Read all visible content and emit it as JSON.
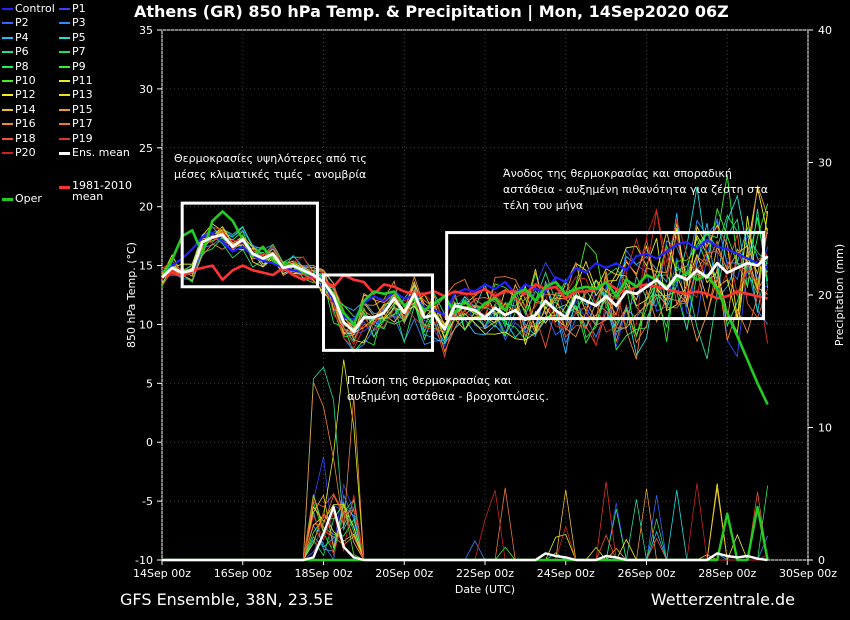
{
  "title": "Athens  (GR)  850 hPa Temp. & Precipitation | Mon, 14Sep2020 06Z",
  "footer": {
    "left": "GFS Ensemble, 38N, 23.5E",
    "right": "Wetterzentrale.de"
  },
  "legend": [
    {
      "label": "Control",
      "color": "#2222ff"
    },
    {
      "label": "P1",
      "color": "#3344ff"
    },
    {
      "label": "P2",
      "color": "#3366ff"
    },
    {
      "label": "P3",
      "color": "#3388ff"
    },
    {
      "label": "P4",
      "color": "#22bbff"
    },
    {
      "label": "P5",
      "color": "#22dddd"
    },
    {
      "label": "P6",
      "color": "#22dd99"
    },
    {
      "label": "P7",
      "color": "#22dd66"
    },
    {
      "label": "P8",
      "color": "#22ee55"
    },
    {
      "label": "P9",
      "color": "#33ee33"
    },
    {
      "label": "P10",
      "color": "#44ee22"
    },
    {
      "label": "P11",
      "color": "#ddee22"
    },
    {
      "label": "P12",
      "color": "#eeee22"
    },
    {
      "label": "P13",
      "color": "#eedd22"
    },
    {
      "label": "P14",
      "color": "#eebb33"
    },
    {
      "label": "P15",
      "color": "#ee9933"
    },
    {
      "label": "P16",
      "color": "#ee8833"
    },
    {
      "label": "P17",
      "color": "#ee7733"
    },
    {
      "label": "P18",
      "color": "#ee5533"
    },
    {
      "label": "P19",
      "color": "#dd3322"
    },
    {
      "label": "P20",
      "color": "#cc2222"
    },
    {
      "label": "Ens. mean",
      "color": "#ffffff"
    },
    {
      "label": "Oper",
      "color": "#22cc22"
    },
    {
      "label": "1981-2010 mean",
      "color": "#ff3333"
    }
  ],
  "chart_data": {
    "type": "line",
    "ylabel": "850 hPa Temp. (°C)",
    "y2label": "Precipitation (mm)",
    "xlabel": "Date (UTC)",
    "ylim": [
      -10,
      35
    ],
    "y2lim": [
      0,
      40
    ],
    "yticks": [
      "35",
      "30",
      "25",
      "20",
      "15",
      "10",
      "5",
      "0",
      "-5",
      "-10"
    ],
    "y2ticks": [
      "40",
      "30",
      "20",
      "10",
      "0"
    ],
    "xticks": [
      "14Sep 00z",
      "16Sep 00z",
      "18Sep 00z",
      "20Sep 00z",
      "22Sep 00z",
      "24Sep 00z",
      "26Sep 00z",
      "28Sep 00z",
      "30Sep 00z"
    ],
    "xlim_days": [
      0,
      16
    ],
    "grid": true,
    "oper_temp": [
      14.0,
      15.5,
      17.5,
      18.0,
      16.0,
      18.8,
      19.6,
      18.8,
      17.2,
      15.8,
      16.6,
      15.4,
      15.0,
      15.0,
      14.4,
      14.2,
      13.6,
      12.6,
      11.0,
      10.0,
      12.0,
      12.8,
      12.6,
      12.8,
      11.6,
      12.2,
      11.2,
      11.8,
      12.4,
      11.0,
      12.0,
      11.0,
      11.8,
      12.2,
      11.2,
      12.6,
      13.0,
      12.0,
      13.2,
      13.6,
      12.6,
      13.0,
      13.2,
      13.0,
      13.6,
      12.4,
      13.8,
      13.2,
      14.2,
      13.8,
      13.2,
      13.8,
      14.4,
      13.8,
      14.2,
      13.0,
      11.0,
      9.0,
      7.0,
      5.0,
      3.2
    ],
    "mean_temp": [
      14.0,
      14.8,
      14.4,
      14.6,
      17.0,
      17.4,
      17.6,
      16.6,
      17.2,
      16.0,
      15.6,
      16.0,
      14.8,
      15.0,
      14.6,
      14.2,
      13.6,
      12.4,
      10.2,
      9.4,
      10.6,
      10.6,
      11.0,
      12.2,
      11.0,
      12.6,
      10.6,
      10.8,
      9.6,
      11.6,
      11.4,
      11.2,
      10.6,
      11.4,
      10.8,
      11.2,
      10.4,
      10.8,
      12.0,
      11.2,
      10.6,
      12.4,
      12.0,
      11.6,
      12.4,
      11.6,
      12.8,
      12.6,
      13.2,
      13.8,
      13.0,
      14.2,
      13.8,
      14.6,
      14.0,
      15.2,
      14.4,
      14.8,
      15.2,
      15.0,
      15.8
    ],
    "clim_temp": [
      14.0,
      14.4,
      14.1,
      14.6,
      14.8,
      15.0,
      13.8,
      14.6,
      15.0,
      14.6,
      14.4,
      14.2,
      14.8,
      14.2,
      13.8,
      14.0,
      13.6,
      13.2,
      14.2,
      13.8,
      13.6,
      12.6,
      13.4,
      13.2,
      12.8,
      12.6,
      12.6,
      12.8,
      12.4,
      12.8,
      12.6,
      12.6,
      13.0,
      12.4,
      12.8,
      12.8,
      12.6,
      13.4,
      13.0,
      13.2,
      12.2,
      12.8,
      12.8,
      13.0,
      13.6,
      13.0,
      12.8,
      13.2,
      13.4,
      13.2,
      13.0,
      12.8,
      12.6,
      12.8,
      12.6,
      12.2,
      12.4,
      12.8,
      12.6,
      12.4,
      12.2
    ],
    "control_temp": [
      14.0,
      15.0,
      15.6,
      16.4,
      17.4,
      17.8,
      17.0,
      16.2,
      16.6,
      15.8,
      15.4,
      15.2,
      14.8,
      14.6,
      14.4,
      14.0,
      13.6,
      12.0,
      10.6,
      10.4,
      11.8,
      12.4,
      12.0,
      12.8,
      12.2,
      12.4,
      11.4,
      11.2,
      10.8,
      12.6,
      13.0,
      12.8,
      13.4,
      13.0,
      13.6,
      12.6,
      13.4,
      13.0,
      12.8,
      14.0,
      13.6,
      14.8,
      14.4,
      15.2,
      14.8,
      15.2,
      14.6,
      15.8,
      16.0,
      15.6,
      16.2,
      16.8,
      17.0,
      16.4,
      17.2,
      16.6,
      16.4,
      16.0,
      15.6,
      15.2,
      14.8
    ],
    "mean_precip": [
      0,
      0,
      0,
      0,
      0,
      0,
      0,
      0,
      0,
      0,
      0,
      0,
      0,
      0,
      0,
      0.2,
      2.0,
      4.0,
      1.0,
      0.2,
      0,
      0,
      0,
      0,
      0,
      0,
      0,
      0,
      0,
      0,
      0,
      0,
      0,
      0,
      0,
      0,
      0,
      0,
      0.5,
      0.3,
      0.2,
      0,
      0,
      0,
      0.3,
      0.2,
      0,
      0,
      0,
      0,
      0,
      0,
      0,
      0,
      0,
      0.5,
      0.3,
      0.2,
      0.3,
      0.1,
      0
    ],
    "oper_precip": [
      0,
      0,
      0,
      0,
      0,
      0,
      0,
      0,
      0,
      0,
      0,
      0,
      0,
      0,
      0,
      0,
      0,
      0,
      0,
      0,
      0,
      0,
      0,
      0,
      0,
      0,
      0,
      0,
      0,
      0,
      0,
      0,
      0,
      0,
      0,
      0,
      0,
      0,
      0,
      0,
      0,
      0,
      0,
      0,
      0,
      0,
      0,
      0,
      0,
      0,
      0,
      0,
      0,
      0,
      0,
      0,
      3.5,
      0,
      0,
      4.0,
      0
    ]
  },
  "annotations": [
    {
      "lines": [
        "Θερμοκρασίες υψηλότερες από τις",
        "μέσες κλιματικές τιμές - ανομβρία"
      ]
    },
    {
      "lines": [
        "Πτώση της θερμοκρασίας και",
        "αυξημένη αστάθεια - βροχοπτώσεις."
      ]
    },
    {
      "lines": [
        "Άνοδος της θερμοκρασίας και σποραδική",
        "αστάθεια - αυξημένη πιθανότητα για ζέστη στα",
        "τέλη του μήνα"
      ]
    }
  ]
}
